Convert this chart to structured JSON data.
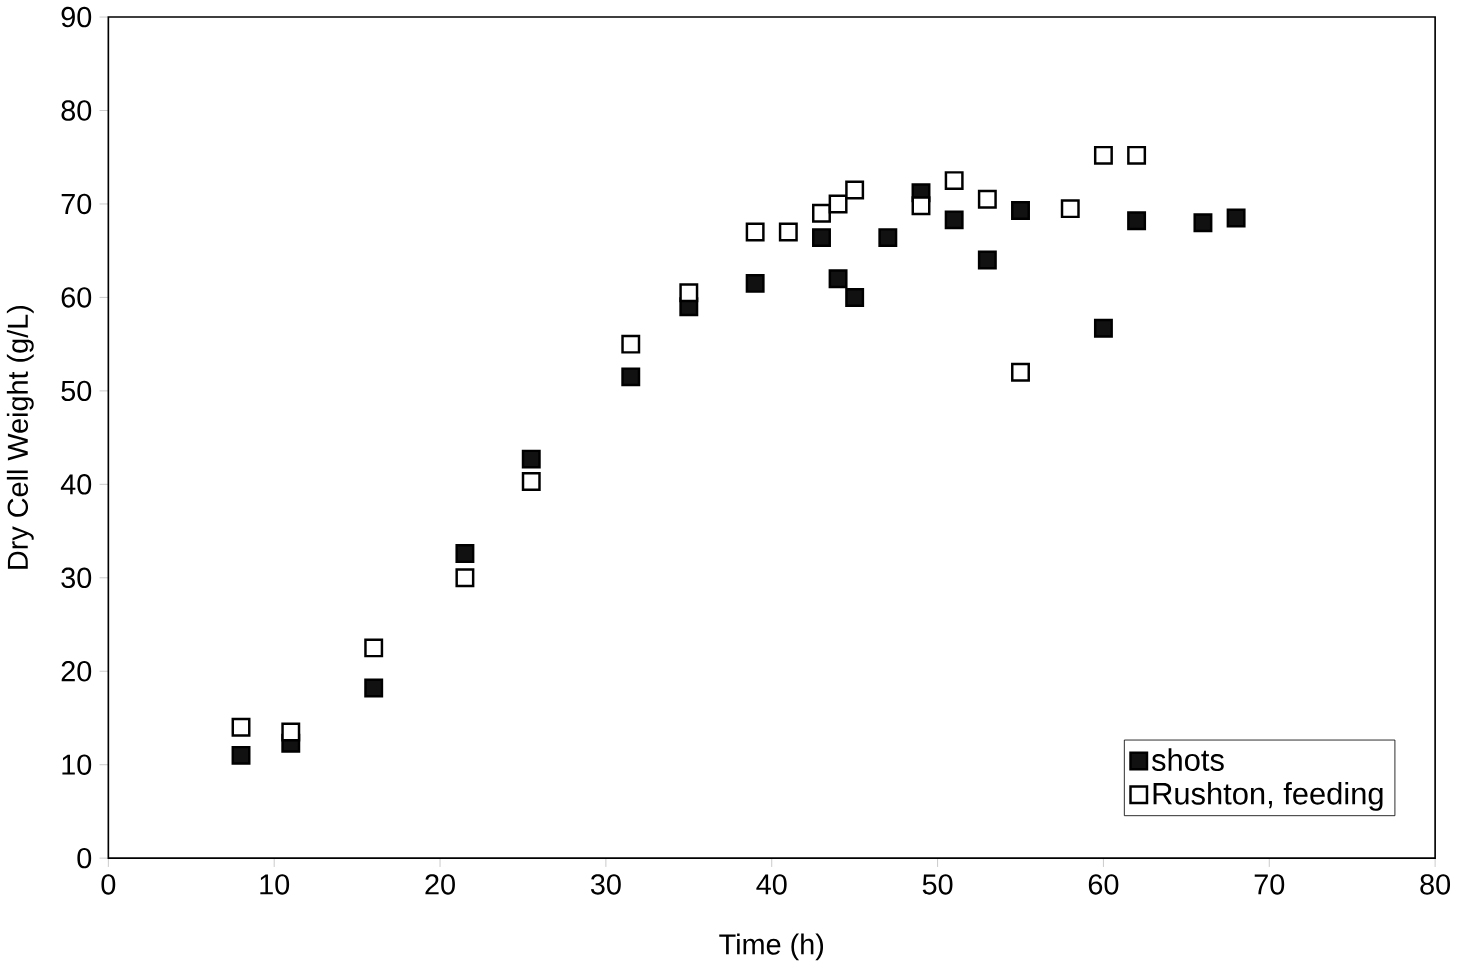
{
  "chart_data": {
    "type": "scatter",
    "xlabel": "Time (h)",
    "ylabel": "Dry Cell Weight (g/L)",
    "xlim": [
      0,
      80
    ],
    "xticks": [
      0,
      10,
      20,
      30,
      40,
      50,
      60,
      70,
      80
    ],
    "ylim": [
      0,
      90
    ],
    "yticks": [
      0,
      10,
      20,
      30,
      40,
      50,
      60,
      70,
      80,
      90
    ],
    "legend": "bottom right",
    "marker": "square",
    "grid": false,
    "series": [
      {
        "name": "shots",
        "color": "#111111",
        "x": [
          8,
          11,
          16,
          21.5,
          25.5,
          31.5,
          35,
          39,
          43,
          44,
          45,
          47,
          49,
          51,
          53,
          55,
          60,
          62,
          66,
          68
        ],
        "values": [
          11,
          12.3,
          18.2,
          32.6,
          42.7,
          51.5,
          59,
          61.5,
          66.4,
          62,
          60,
          66.4,
          71.2,
          68.3,
          64,
          69.3,
          56.7,
          68.2,
          68,
          68.5
        ]
      },
      {
        "name": "Rushton, feeding",
        "color": "#ffffff",
        "x": [
          8,
          11,
          16,
          21.5,
          25.5,
          31.5,
          35,
          39,
          41,
          43,
          44,
          45,
          49,
          51,
          53,
          55,
          58,
          60,
          62
        ],
        "values": [
          14,
          13.5,
          22.5,
          30,
          40.3,
          55,
          60.5,
          67,
          67,
          69,
          70,
          71.5,
          69.8,
          72.5,
          70.5,
          52,
          69.5,
          75.2,
          75.2
        ]
      }
    ]
  }
}
